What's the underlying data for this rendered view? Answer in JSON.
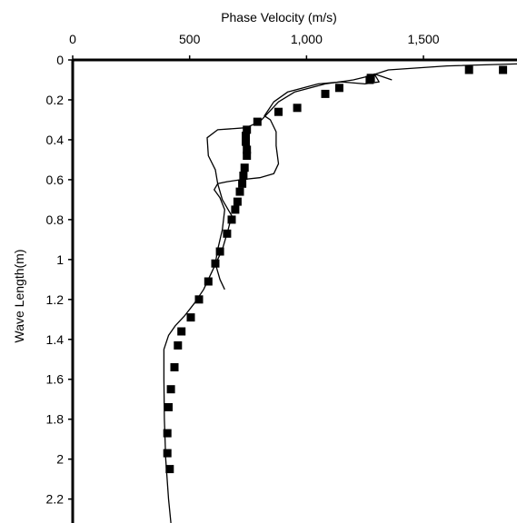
{
  "chart_data": {
    "type": "scatter",
    "title": "",
    "xlabel": "Phase Velocity (m/s)",
    "ylabel": "Wave Length(m)",
    "x_axis_position": "top",
    "y_inverted": true,
    "xlim": [
      0,
      1900
    ],
    "ylim": [
      0,
      2.32
    ],
    "x_ticks": [
      0,
      500,
      1000,
      1500
    ],
    "x_tick_labels": [
      "0",
      "500",
      "1,000",
      "1,500"
    ],
    "y_ticks": [
      0,
      0.2,
      0.4,
      0.6,
      0.8,
      1,
      1.2,
      1.4,
      1.6,
      1.8,
      2,
      2.2
    ],
    "y_tick_labels": [
      "0",
      "0.2",
      "0.4",
      "0.6",
      "0.8",
      "1",
      "1.2",
      "1.4",
      "1.6",
      "1.8",
      "2",
      "2.2"
    ],
    "grid": false,
    "legend": "none",
    "colors": {
      "markers": "#000000",
      "lines": "#000000",
      "background": "#ffffff"
    },
    "series": [
      {
        "kind": "markers",
        "points": [
          [
            1840,
            0.05
          ],
          [
            1695,
            0.05
          ],
          [
            1275,
            0.09
          ],
          [
            1270,
            0.1
          ],
          [
            1140,
            0.14
          ],
          [
            1080,
            0.17
          ],
          [
            960,
            0.24
          ],
          [
            880,
            0.26
          ],
          [
            790,
            0.31
          ],
          [
            745,
            0.35
          ],
          [
            740,
            0.38
          ],
          [
            740,
            0.41
          ],
          [
            745,
            0.45
          ],
          [
            745,
            0.48
          ],
          [
            735,
            0.54
          ],
          [
            730,
            0.58
          ],
          [
            725,
            0.62
          ],
          [
            715,
            0.66
          ],
          [
            705,
            0.71
          ],
          [
            695,
            0.75
          ],
          [
            680,
            0.8
          ],
          [
            660,
            0.87
          ],
          [
            630,
            0.96
          ],
          [
            610,
            1.02
          ],
          [
            580,
            1.11
          ],
          [
            540,
            1.2
          ],
          [
            505,
            1.29
          ],
          [
            465,
            1.36
          ],
          [
            450,
            1.43
          ],
          [
            435,
            1.54
          ],
          [
            420,
            1.65
          ],
          [
            410,
            1.74
          ],
          [
            405,
            1.87
          ],
          [
            405,
            1.97
          ],
          [
            415,
            2.05
          ]
        ]
      },
      {
        "kind": "line",
        "points": [
          [
            1900,
            0.02
          ],
          [
            1600,
            0.03
          ],
          [
            1350,
            0.05
          ],
          [
            1270,
            0.08
          ],
          [
            1200,
            0.1
          ],
          [
            1080,
            0.12
          ],
          [
            950,
            0.16
          ],
          [
            880,
            0.21
          ],
          [
            840,
            0.26
          ],
          [
            800,
            0.31
          ],
          [
            740,
            0.34
          ],
          [
            620,
            0.35
          ],
          [
            575,
            0.39
          ],
          [
            580,
            0.48
          ],
          [
            610,
            0.55
          ],
          [
            620,
            0.62
          ],
          [
            640,
            0.7
          ],
          [
            680,
            0.78
          ],
          [
            665,
            0.85
          ],
          [
            640,
            0.95
          ],
          [
            600,
            1.05
          ],
          [
            560,
            1.15
          ],
          [
            520,
            1.22
          ],
          [
            480,
            1.28
          ],
          [
            440,
            1.33
          ],
          [
            410,
            1.38
          ],
          [
            390,
            1.45
          ],
          [
            390,
            1.6
          ],
          [
            392,
            1.8
          ],
          [
            398,
            2.0
          ],
          [
            410,
            2.2
          ],
          [
            420,
            2.32
          ]
        ]
      },
      {
        "kind": "line",
        "points": [
          [
            1365,
            0.1
          ],
          [
            1290,
            0.07
          ],
          [
            1310,
            0.11
          ],
          [
            1250,
            0.12
          ],
          [
            1150,
            0.11
          ],
          [
            1050,
            0.12
          ],
          [
            920,
            0.16
          ],
          [
            860,
            0.21
          ],
          [
            820,
            0.28
          ],
          [
            845,
            0.3
          ],
          [
            870,
            0.36
          ],
          [
            870,
            0.43
          ],
          [
            880,
            0.52
          ],
          [
            860,
            0.57
          ],
          [
            800,
            0.59
          ],
          [
            720,
            0.6
          ],
          [
            660,
            0.61
          ],
          [
            620,
            0.62
          ],
          [
            605,
            0.65
          ],
          [
            630,
            0.69
          ],
          [
            650,
            0.75
          ],
          [
            640,
            0.85
          ],
          [
            620,
            0.95
          ],
          [
            610,
            1.02
          ],
          [
            630,
            1.1
          ],
          [
            650,
            1.15
          ]
        ]
      }
    ]
  }
}
